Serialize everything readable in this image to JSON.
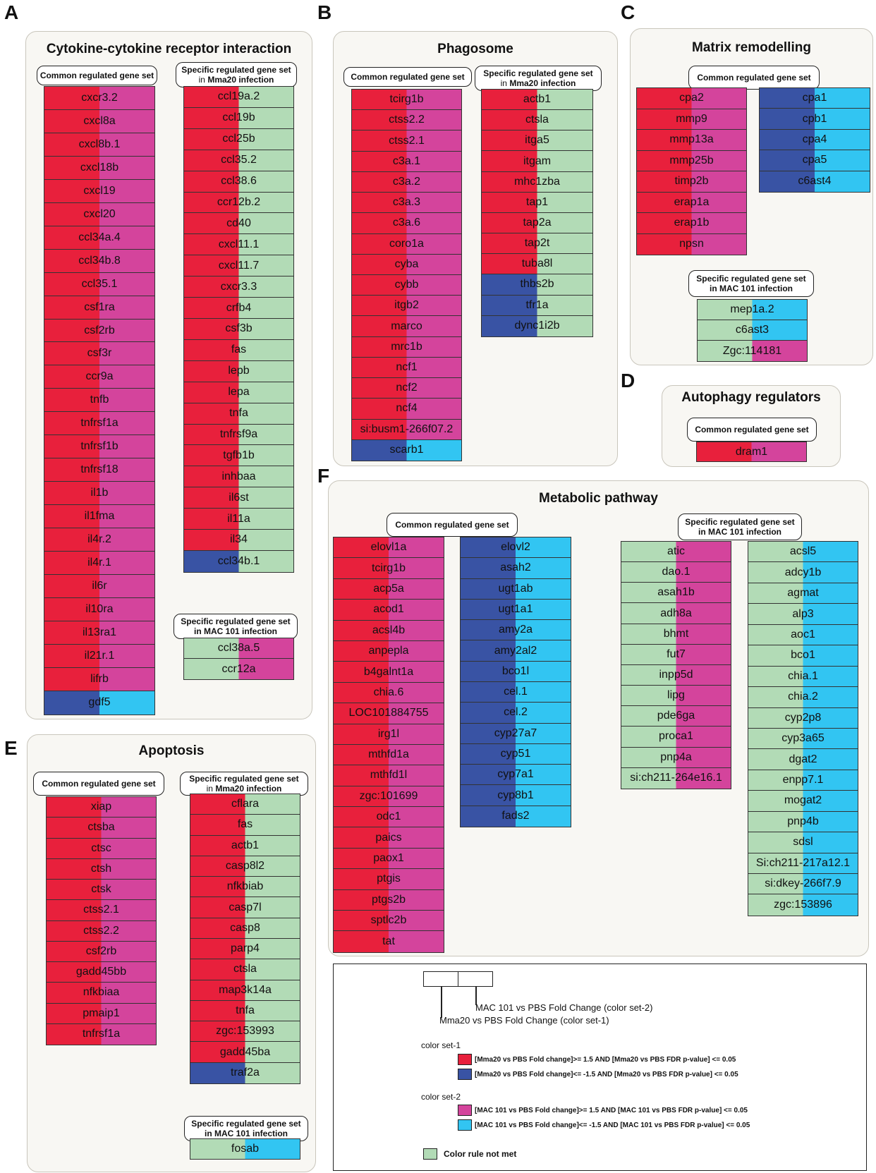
{
  "colors": {
    "up1": "#e8203c",
    "down1": "#3953a4",
    "up2": "#d4449c",
    "down2": "#32c5f2",
    "none": "#b2dbb6"
  },
  "panels": {
    "A": {
      "label": "A",
      "title": "Cytokine-cytokine receptor interaction",
      "common_title": "Common regulated gene set",
      "mma_title_l1": "Specific regulated gene set",
      "mma_title_prefix": "in ",
      "mma_title_bold": "Mma20",
      "mma_title_suffix": " infection",
      "mac_title_l1": "Specific regulated gene set",
      "mac_title_l2": "in MAC 101 infection"
    },
    "B": {
      "label": "B",
      "title": "Phagosome",
      "common_title": "Common regulated gene set",
      "mma_title_l1": "Specific regulated gene set",
      "mma_title_prefix": "in ",
      "mma_title_bold": "Mma20",
      "mma_title_suffix": " infection"
    },
    "C": {
      "label": "C",
      "title": "Matrix remodelling",
      "common_title": "Common regulated gene set",
      "mac_title_l1": "Specific regulated gene set",
      "mac_title_l2": "in MAC 101 infection"
    },
    "D": {
      "label": "D",
      "title": "Autophagy regulators",
      "common_title": "Common regulated gene set"
    },
    "E": {
      "label": "E",
      "title": "Apoptosis",
      "common_title": "Common regulated gene set",
      "mma_title_l1": "Specific regulated gene set",
      "mma_title_prefix": "in ",
      "mma_title_bold": "Mma20",
      "mma_title_suffix": " infection",
      "mac_title_l1": "Specific regulated gene set",
      "mac_title_l2": "in MAC 101 infection"
    },
    "F": {
      "label": "F",
      "title": "Metabolic pathway",
      "common_title": "Common regulated gene set",
      "mac_title_l1": "Specific regulated gene set",
      "mac_title_l2": "in MAC 101 infection"
    }
  },
  "gene_sets": {
    "A_common": [
      [
        "cxcr3.2",
        "up1",
        "up2"
      ],
      [
        "cxcl8a",
        "up1",
        "up2"
      ],
      [
        "cxcl8b.1",
        "up1",
        "up2"
      ],
      [
        "cxcl18b",
        "up1",
        "up2"
      ],
      [
        "cxcl19",
        "up1",
        "up2"
      ],
      [
        "cxcl20",
        "up1",
        "up2"
      ],
      [
        "ccl34a.4",
        "up1",
        "up2"
      ],
      [
        "ccl34b.8",
        "up1",
        "up2"
      ],
      [
        "ccl35.1",
        "up1",
        "up2"
      ],
      [
        "csf1ra",
        "up1",
        "up2"
      ],
      [
        "csf2rb",
        "up1",
        "up2"
      ],
      [
        "csf3r",
        "up1",
        "up2"
      ],
      [
        "ccr9a",
        "up1",
        "up2"
      ],
      [
        "tnfb",
        "up1",
        "up2"
      ],
      [
        "tnfrsf1a",
        "up1",
        "up2"
      ],
      [
        "tnfrsf1b",
        "up1",
        "up2"
      ],
      [
        "tnfrsf18",
        "up1",
        "up2"
      ],
      [
        "il1b",
        "up1",
        "up2"
      ],
      [
        "il1fma",
        "up1",
        "up2"
      ],
      [
        "il4r.2",
        "up1",
        "up2"
      ],
      [
        "il4r.1",
        "up1",
        "up2"
      ],
      [
        "il6r",
        "up1",
        "up2"
      ],
      [
        "il10ra",
        "up1",
        "up2"
      ],
      [
        "il13ra1",
        "up1",
        "up2"
      ],
      [
        "il21r.1",
        "up1",
        "up2"
      ],
      [
        "lifrb",
        "up1",
        "up2"
      ],
      [
        "gdf5",
        "down1",
        "down2"
      ]
    ],
    "A_mma": [
      [
        "ccl19a.2",
        "up1",
        "none"
      ],
      [
        "ccl19b",
        "up1",
        "none"
      ],
      [
        "ccl25b",
        "up1",
        "none"
      ],
      [
        "ccl35.2",
        "up1",
        "none"
      ],
      [
        "ccl38.6",
        "up1",
        "none"
      ],
      [
        "ccr12b.2",
        "up1",
        "none"
      ],
      [
        "cd40",
        "up1",
        "none"
      ],
      [
        "cxcl11.1",
        "up1",
        "none"
      ],
      [
        "cxcl11.7",
        "up1",
        "none"
      ],
      [
        "cxcr3.3",
        "up1",
        "none"
      ],
      [
        "crfb4",
        "up1",
        "none"
      ],
      [
        "csf3b",
        "up1",
        "none"
      ],
      [
        "fas",
        "up1",
        "none"
      ],
      [
        "lepb",
        "up1",
        "none"
      ],
      [
        "lepa",
        "up1",
        "none"
      ],
      [
        "tnfa",
        "up1",
        "none"
      ],
      [
        "tnfrsf9a",
        "up1",
        "none"
      ],
      [
        "tgfb1b",
        "up1",
        "none"
      ],
      [
        "inhbaa",
        "up1",
        "none"
      ],
      [
        "il6st",
        "up1",
        "none"
      ],
      [
        "il11a",
        "up1",
        "none"
      ],
      [
        "il34",
        "up1",
        "none"
      ],
      [
        "ccl34b.1",
        "down1",
        "none"
      ]
    ],
    "A_mac": [
      [
        "ccl38a.5",
        "none",
        "up2"
      ],
      [
        "ccr12a",
        "none",
        "up2"
      ]
    ],
    "B_common": [
      [
        "tcirg1b",
        "up1",
        "up2"
      ],
      [
        "ctss2.2",
        "up1",
        "up2"
      ],
      [
        "ctss2.1",
        "up1",
        "up2"
      ],
      [
        "c3a.1",
        "up1",
        "up2"
      ],
      [
        "c3a.2",
        "up1",
        "up2"
      ],
      [
        "c3a.3",
        "up1",
        "up2"
      ],
      [
        "c3a.6",
        "up1",
        "up2"
      ],
      [
        "coro1a",
        "up1",
        "up2"
      ],
      [
        "cyba",
        "up1",
        "up2"
      ],
      [
        "cybb",
        "up1",
        "up2"
      ],
      [
        "itgb2",
        "up1",
        "up2"
      ],
      [
        "marco",
        "up1",
        "up2"
      ],
      [
        "mrc1b",
        "up1",
        "up2"
      ],
      [
        "ncf1",
        "up1",
        "up2"
      ],
      [
        "ncf2",
        "up1",
        "up2"
      ],
      [
        "ncf4",
        "up1",
        "up2"
      ],
      [
        "si:busm1-266f07.2",
        "up1",
        "up2"
      ],
      [
        "scarb1",
        "down1",
        "down2"
      ]
    ],
    "B_mma": [
      [
        "actb1",
        "up1",
        "none"
      ],
      [
        "ctsla",
        "up1",
        "none"
      ],
      [
        "itga5",
        "up1",
        "none"
      ],
      [
        "itgam",
        "up1",
        "none"
      ],
      [
        "mhc1zba",
        "up1",
        "none"
      ],
      [
        "tap1",
        "up1",
        "none"
      ],
      [
        "tap2a",
        "up1",
        "none"
      ],
      [
        "tap2t",
        "up1",
        "none"
      ],
      [
        "tuba8l",
        "up1",
        "none"
      ],
      [
        "thbs2b",
        "down1",
        "none"
      ],
      [
        "tfr1a",
        "down1",
        "none"
      ],
      [
        "dync1i2b",
        "down1",
        "none"
      ]
    ],
    "C_common_up": [
      [
        "cpa2",
        "up1",
        "up2"
      ],
      [
        "mmp9",
        "up1",
        "up2"
      ],
      [
        "mmp13a",
        "up1",
        "up2"
      ],
      [
        "mmp25b",
        "up1",
        "up2"
      ],
      [
        "timp2b",
        "up1",
        "up2"
      ],
      [
        "erap1a",
        "up1",
        "up2"
      ],
      [
        "erap1b",
        "up1",
        "up2"
      ],
      [
        "npsn",
        "up1",
        "up2"
      ]
    ],
    "C_common_down": [
      [
        "cpa1",
        "down1",
        "down2"
      ],
      [
        "cpb1",
        "down1",
        "down2"
      ],
      [
        "cpa4",
        "down1",
        "down2"
      ],
      [
        "cpa5",
        "down1",
        "down2"
      ],
      [
        "c6ast4",
        "down1",
        "down2"
      ]
    ],
    "C_mac": [
      [
        "mep1a.2",
        "none",
        "down2"
      ],
      [
        "c6ast3",
        "none",
        "down2"
      ],
      [
        "Zgc:114181",
        "none",
        "up2"
      ]
    ],
    "D_common": [
      [
        "dram1",
        "up1",
        "up2"
      ]
    ],
    "E_common": [
      [
        "xiap",
        "up1",
        "up2"
      ],
      [
        "ctsba",
        "up1",
        "up2"
      ],
      [
        "ctsc",
        "up1",
        "up2"
      ],
      [
        "ctsh",
        "up1",
        "up2"
      ],
      [
        "ctsk",
        "up1",
        "up2"
      ],
      [
        "ctss2.1",
        "up1",
        "up2"
      ],
      [
        "ctss2.2",
        "up1",
        "up2"
      ],
      [
        "csf2rb",
        "up1",
        "up2"
      ],
      [
        "gadd45bb",
        "up1",
        "up2"
      ],
      [
        "nfkbiaa",
        "up1",
        "up2"
      ],
      [
        "pmaip1",
        "up1",
        "up2"
      ],
      [
        "tnfrsf1a",
        "up1",
        "up2"
      ]
    ],
    "E_mma": [
      [
        "cflara",
        "up1",
        "none"
      ],
      [
        "fas",
        "up1",
        "none"
      ],
      [
        "actb1",
        "up1",
        "none"
      ],
      [
        "casp8l2",
        "up1",
        "none"
      ],
      [
        "nfkbiab",
        "up1",
        "none"
      ],
      [
        "casp7l",
        "up1",
        "none"
      ],
      [
        "casp8",
        "up1",
        "none"
      ],
      [
        "parp4",
        "up1",
        "none"
      ],
      [
        "ctsla",
        "up1",
        "none"
      ],
      [
        "map3k14a",
        "up1",
        "none"
      ],
      [
        "tnfa",
        "up1",
        "none"
      ],
      [
        "zgc:153993",
        "up1",
        "none"
      ],
      [
        "gadd45ba",
        "up1",
        "none"
      ],
      [
        "traf2a",
        "down1",
        "none"
      ]
    ],
    "E_mac": [
      [
        "fosab",
        "none",
        "down2"
      ]
    ],
    "F_common_up": [
      [
        "elovl1a",
        "up1",
        "up2"
      ],
      [
        "tcirg1b",
        "up1",
        "up2"
      ],
      [
        "acp5a",
        "up1",
        "up2"
      ],
      [
        "acod1",
        "up1",
        "up2"
      ],
      [
        "acsl4b",
        "up1",
        "up2"
      ],
      [
        "anpepla",
        "up1",
        "up2"
      ],
      [
        "b4galnt1a",
        "up1",
        "up2"
      ],
      [
        "chia.6",
        "up1",
        "up2"
      ],
      [
        "LOC101884755",
        "up1",
        "up2"
      ],
      [
        "irg1l",
        "up1",
        "up2"
      ],
      [
        "mthfd1a",
        "up1",
        "up2"
      ],
      [
        "mthfd1l",
        "up1",
        "up2"
      ],
      [
        "zgc:101699",
        "up1",
        "up2"
      ],
      [
        "odc1",
        "up1",
        "up2"
      ],
      [
        "paics",
        "up1",
        "up2"
      ],
      [
        "paox1",
        "up1",
        "up2"
      ],
      [
        "ptgis",
        "up1",
        "up2"
      ],
      [
        "ptgs2b",
        "up1",
        "up2"
      ],
      [
        "sptlc2b",
        "up1",
        "up2"
      ],
      [
        "tat",
        "up1",
        "up2"
      ]
    ],
    "F_common_down": [
      [
        "elovl2",
        "down1",
        "down2"
      ],
      [
        "asah2",
        "down1",
        "down2"
      ],
      [
        "ugt1ab",
        "down1",
        "down2"
      ],
      [
        "ugt1a1",
        "down1",
        "down2"
      ],
      [
        "amy2a",
        "down1",
        "down2"
      ],
      [
        "amy2al2",
        "down1",
        "down2"
      ],
      [
        "bco1l",
        "down1",
        "down2"
      ],
      [
        "cel.1",
        "down1",
        "down2"
      ],
      [
        "cel.2",
        "down1",
        "down2"
      ],
      [
        "cyp27a7",
        "down1",
        "down2"
      ],
      [
        "cyp51",
        "down1",
        "down2"
      ],
      [
        "cyp7a1",
        "down1",
        "down2"
      ],
      [
        "cyp8b1",
        "down1",
        "down2"
      ],
      [
        "fads2",
        "down1",
        "down2"
      ]
    ],
    "F_mac_up": [
      [
        "atic",
        "none",
        "up2"
      ],
      [
        "dao.1",
        "none",
        "up2"
      ],
      [
        "asah1b",
        "none",
        "up2"
      ],
      [
        "adh8a",
        "none",
        "up2"
      ],
      [
        "bhmt",
        "none",
        "up2"
      ],
      [
        "fut7",
        "none",
        "up2"
      ],
      [
        "inpp5d",
        "none",
        "up2"
      ],
      [
        "lipg",
        "none",
        "up2"
      ],
      [
        "pde6ga",
        "none",
        "up2"
      ],
      [
        "proca1",
        "none",
        "up2"
      ],
      [
        "pnp4a",
        "none",
        "up2"
      ],
      [
        "si:ch211-264e16.1",
        "none",
        "up2"
      ]
    ],
    "F_mac_down": [
      [
        "acsl5",
        "none",
        "down2"
      ],
      [
        "adcy1b",
        "none",
        "down2"
      ],
      [
        "agmat",
        "none",
        "down2"
      ],
      [
        "alp3",
        "none",
        "down2"
      ],
      [
        "aoc1",
        "none",
        "down2"
      ],
      [
        "bco1",
        "none",
        "down2"
      ],
      [
        "chia.1",
        "none",
        "down2"
      ],
      [
        "chia.2",
        "none",
        "down2"
      ],
      [
        "cyp2p8",
        "none",
        "down2"
      ],
      [
        "cyp3a65",
        "none",
        "down2"
      ],
      [
        "dgat2",
        "none",
        "down2"
      ],
      [
        "enpp7.1",
        "none",
        "down2"
      ],
      [
        "mogat2",
        "none",
        "down2"
      ],
      [
        "pnp4b",
        "none",
        "down2"
      ],
      [
        "sdsl",
        "none",
        "down2"
      ],
      [
        "Si:ch211-217a12.1",
        "none",
        "down2"
      ],
      [
        "si:dkey-266f7.9",
        "none",
        "down2"
      ],
      [
        "zgc:153896",
        "none",
        "down2"
      ]
    ]
  },
  "legend": {
    "mac_label": "MAC 101 vs PBS Fold Change (color set-2)",
    "mma_label": "Mma20 vs PBS Fold Change (color set-1)",
    "set1_title": "color set-1",
    "set1_up": "[Mma20 vs PBS Fold change]>= 1.5 AND [Mma20 vs PBS FDR p-value] <= 0.05",
    "set1_down": "[Mma20 vs PBS Fold change]<= -1.5 AND [Mma20 vs PBS FDR p-value] <= 0.05",
    "set2_title": "color set-2",
    "set2_up": "[MAC 101 vs PBS Fold change]>= 1.5 AND [MAC 101 vs PBS FDR p-value] <= 0.05",
    "set2_down": "[MAC 101 vs PBS Fold change]<= -1.5 AND [MAC 101 vs PBS FDR p-value] <= 0.05",
    "none_label": "Color rule not met"
  }
}
